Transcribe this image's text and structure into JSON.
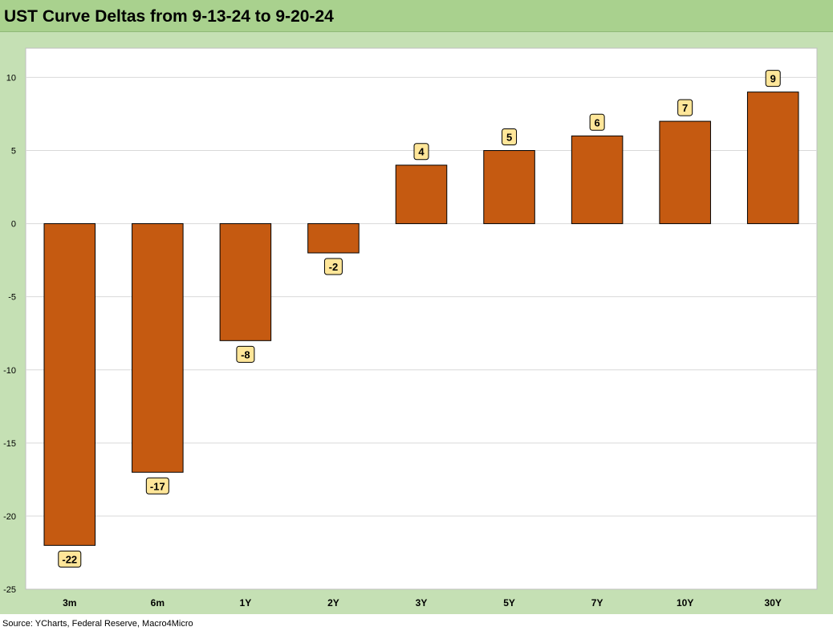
{
  "title": "UST Curve Deltas from 9-13-24 to 9-20-24",
  "source": "Source: YCharts, Federal Reserve, Macro4Micro",
  "colors": {
    "header_bg": "#a9d18e",
    "frame_bg": "#c5e0b4",
    "bar_fill": "#c55a11",
    "label_bg": "#ffe699"
  },
  "chart_data": {
    "type": "bar",
    "title": "UST Curve Deltas from 9-13-24 to 9-20-24",
    "xlabel": "",
    "ylabel": "",
    "categories": [
      "3m",
      "6m",
      "1Y",
      "2Y",
      "3Y",
      "5Y",
      "7Y",
      "10Y",
      "30Y"
    ],
    "values": [
      -22,
      -17,
      -8,
      -2,
      4,
      5,
      6,
      7,
      9
    ],
    "data_labels": [
      "-22",
      "-17",
      "-8",
      "-2",
      "4",
      "5",
      "6",
      "7",
      "9"
    ],
    "ylim": [
      -25,
      12
    ],
    "yticks": [
      10,
      5,
      0,
      -5,
      -10,
      -15,
      -20,
      -25
    ],
    "ytick_labels": [
      "10",
      "5",
      "0",
      "-5",
      "-10",
      "-15",
      "-20",
      "-25"
    ],
    "grid": true,
    "legend": "none"
  }
}
